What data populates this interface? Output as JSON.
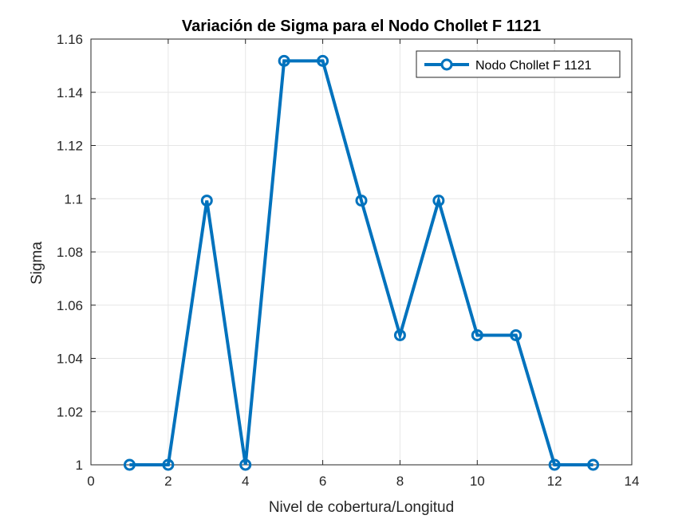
{
  "colors": {
    "series": "#0072BD",
    "grid": "#e6e6e6",
    "axis": "#262626",
    "background": "#ffffff"
  },
  "chart_data": {
    "type": "line",
    "title": "Variación de Sigma para el Nodo Chollet F 1121",
    "xlabel": "Nivel de cobertura/Longitud",
    "ylabel": "Sigma",
    "xlim": [
      0,
      14
    ],
    "ylim": [
      1,
      1.16
    ],
    "xticks": [
      0,
      2,
      4,
      6,
      8,
      10,
      12,
      14
    ],
    "xtick_labels": [
      "0",
      "2",
      "4",
      "6",
      "8",
      "10",
      "12",
      "14"
    ],
    "yticks": [
      1,
      1.02,
      1.04,
      1.06,
      1.08,
      1.1,
      1.12,
      1.14,
      1.16
    ],
    "ytick_labels": [
      "1",
      "1.02",
      "1.04",
      "1.06",
      "1.08",
      "1.1",
      "1.12",
      "1.14",
      "1.16"
    ],
    "grid": true,
    "legend_position": "top-right",
    "marker": "circle",
    "series": [
      {
        "name": "Nodo Chollet F 1121",
        "x": [
          1,
          2,
          3,
          4,
          5,
          6,
          7,
          8,
          9,
          10,
          11,
          12,
          13
        ],
        "values": [
          1.0,
          1.0,
          1.0993,
          1.0,
          1.1518,
          1.1518,
          1.0993,
          1.0487,
          1.0993,
          1.0487,
          1.0487,
          1.0,
          1.0
        ]
      }
    ]
  }
}
